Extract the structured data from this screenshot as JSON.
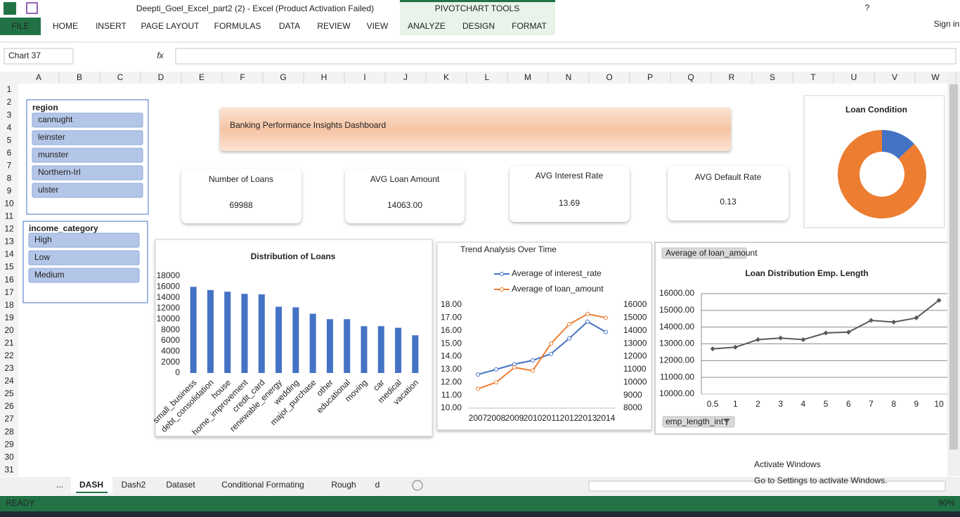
{
  "window": {
    "title": "Deepti_Goel_Excel_part2 (2) - Excel (Product Activation Failed)",
    "tool_group": "PIVOTCHART TOOLS",
    "help": "?",
    "sign_in": "Sign in"
  },
  "ribbon_tabs": [
    "FILE",
    "HOME",
    "INSERT",
    "PAGE LAYOUT",
    "FORMULAS",
    "DATA",
    "REVIEW",
    "VIEW",
    "ANALYZE",
    "DESIGN",
    "FORMAT"
  ],
  "formula_bar": {
    "name_box": "Chart 37",
    "fx": "fx"
  },
  "columns": [
    "A",
    "B",
    "C",
    "D",
    "E",
    "F",
    "G",
    "H",
    "I",
    "J",
    "K",
    "L",
    "M",
    "N",
    "O",
    "P",
    "Q",
    "R",
    "S",
    "T",
    "U",
    "V",
    "W"
  ],
  "rows": [
    1,
    2,
    3,
    4,
    5,
    6,
    7,
    8,
    9,
    10,
    11,
    12,
    13,
    14,
    15,
    16,
    17,
    18,
    19,
    20,
    21,
    22,
    23,
    24,
    25,
    26,
    27,
    28,
    29,
    30,
    31
  ],
  "slicers": [
    {
      "title": "region",
      "items": [
        "cannught",
        "leinster",
        "munster",
        "Northern-Irl",
        "ulster"
      ]
    },
    {
      "title": "income_category",
      "items": [
        "High",
        "Low",
        "Medium"
      ]
    }
  ],
  "dashboard": {
    "title": "Banking Performance Insights Dashboard",
    "kpis": [
      {
        "label": "Number of Loans",
        "value": 69988
      },
      {
        "label": "AVG Loan Amount",
        "value": "14063.00"
      },
      {
        "label": "AVG Interest Rate",
        "value": 13.69
      },
      {
        "label": "AVG Default Rate",
        "value": 0.13
      }
    ]
  },
  "chart_data": [
    {
      "type": "pie",
      "title": "Loan Condition",
      "values": [
        13,
        87
      ],
      "colors": [
        "#4472c4",
        "#ed7d31"
      ],
      "donut": true
    },
    {
      "type": "bar",
      "title": "Distribution of Loans",
      "categories": [
        "small_business",
        "debt_consolidation",
        "house",
        "home_improvement",
        "credit_card",
        "renewable_energy",
        "wedding",
        "major_purchase",
        "other",
        "educational",
        "moving",
        "car",
        "medical",
        "vacation"
      ],
      "values": [
        16000,
        15400,
        15100,
        14700,
        14600,
        12300,
        12200,
        11000,
        10000,
        10000,
        8700,
        8700,
        8400,
        7000
      ],
      "color": "#4472c4",
      "ylim": [
        0,
        18000
      ],
      "yticks": [
        0,
        2000,
        4000,
        6000,
        8000,
        10000,
        12000,
        14000,
        16000,
        18000
      ]
    },
    {
      "type": "line",
      "title": "Trend Analysis Over Time",
      "x": [
        2007,
        2008,
        2009,
        2010,
        2011,
        2012,
        2013,
        2014
      ],
      "xlim": [
        2006.5,
        2014.5
      ],
      "series": [
        {
          "name": "Average of interest_rate",
          "color": "#4472c4",
          "values": [
            12.6,
            13.0,
            13.4,
            13.7,
            14.2,
            15.4,
            16.7,
            15.9
          ]
        },
        {
          "name": "Average of loan_amount",
          "color": "#ed7d31",
          "axis": "y2",
          "values": [
            9500,
            10000,
            11150,
            10900,
            13000,
            14500,
            15300,
            15000
          ]
        }
      ],
      "ylim": [
        10,
        18
      ],
      "yticks": [
        {
          "value": 10,
          "label": "10.00"
        },
        {
          "value": 11,
          "label": "11.00"
        },
        {
          "value": 12,
          "label": "12.00"
        },
        {
          "value": 13,
          "label": "13.00"
        },
        {
          "value": 14,
          "label": "14.00"
        },
        {
          "value": 15,
          "label": "15.00"
        },
        {
          "value": 16,
          "label": "16.00"
        },
        {
          "value": 17,
          "label": "17.00"
        },
        {
          "value": 18,
          "label": "18.00"
        }
      ],
      "y2lim": [
        8000,
        16000
      ],
      "y2ticks": [
        8000,
        9000,
        10000,
        11000,
        12000,
        13000,
        14000,
        15000,
        16000
      ],
      "legend": "top"
    },
    {
      "type": "line",
      "title": "Loan Distribution Emp. Length",
      "value_field": "Average of loan_amount",
      "axis_field": "emp_length_int",
      "categories": [
        "0.5",
        "1",
        "2",
        "3",
        "4",
        "5",
        "6",
        "7",
        "8",
        "9",
        "10"
      ],
      "values": [
        12700,
        12800,
        13250,
        13350,
        13250,
        13650,
        13700,
        14400,
        14300,
        14550,
        15600
      ],
      "color": "#595959",
      "ylim": [
        10000,
        16000
      ],
      "yticks": [
        {
          "value": 10000,
          "label": "10000.00"
        },
        {
          "value": 11000,
          "label": "11000.00"
        },
        {
          "value": 12000,
          "label": "12000.00"
        },
        {
          "value": 13000,
          "label": "13000.00"
        },
        {
          "value": 14000,
          "label": "14000.00"
        },
        {
          "value": 15000,
          "label": "15000.00"
        },
        {
          "value": 16000,
          "label": "16000.00"
        }
      ],
      "grid": true
    }
  ],
  "sheet_tabs": {
    "overflow": "...",
    "tabs": [
      "DASH",
      "Dash2",
      "Dataset",
      "Conditional Formating",
      "Rough",
      "d"
    ]
  },
  "status": {
    "ready": "READY",
    "zoom": "90%"
  },
  "watermark": {
    "line1": "Activate Windows",
    "line2": "Go to Settings to activate Windows."
  }
}
